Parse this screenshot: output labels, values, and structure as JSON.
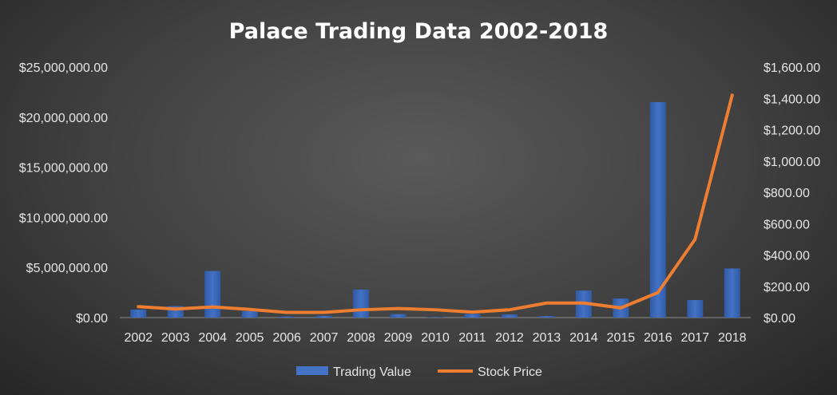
{
  "chart_data": {
    "type": "bar",
    "title": "Palace Trading Data 2002-2018",
    "categories": [
      "2002",
      "2003",
      "2004",
      "2005",
      "2006",
      "2007",
      "2008",
      "2009",
      "2010",
      "2011",
      "2012",
      "2013",
      "2014",
      "2015",
      "2016",
      "2017",
      "2018"
    ],
    "series": [
      {
        "name": "Trading Value",
        "type": "bar",
        "axis": "left",
        "color": "#4472C4",
        "values": [
          800000,
          1150000,
          4650000,
          650000,
          100000,
          180000,
          2800000,
          350000,
          50000,
          350000,
          300000,
          150000,
          2700000,
          1900000,
          21500000,
          1750000,
          4900000
        ]
      },
      {
        "name": "Stock Price",
        "type": "line",
        "axis": "right",
        "color": "#ED7D31",
        "values": [
          70,
          55,
          68,
          52,
          33,
          33,
          50,
          58,
          50,
          35,
          50,
          93,
          93,
          62,
          160,
          500,
          1420
        ]
      }
    ],
    "y_left": {
      "min": 0,
      "max": 25000000,
      "ticks": [
        0,
        5000000,
        10000000,
        15000000,
        20000000,
        25000000
      ],
      "tick_labels": [
        "$0.00",
        "$5,000,000.00",
        "$10,000,000.00",
        "$15,000,000.00",
        "$20,000,000.00",
        "$25,000,000.00"
      ]
    },
    "y_right": {
      "min": 0,
      "max": 1600,
      "ticks": [
        0,
        200,
        400,
        600,
        800,
        1000,
        1200,
        1400,
        1600
      ],
      "tick_labels": [
        "$0.00",
        "$200.00",
        "$400.00",
        "$600.00",
        "$800.00",
        "$1,000.00",
        "$1,200.00",
        "$1,400.00",
        "$1,600.00"
      ]
    },
    "grid": false,
    "legend_position": "bottom"
  }
}
